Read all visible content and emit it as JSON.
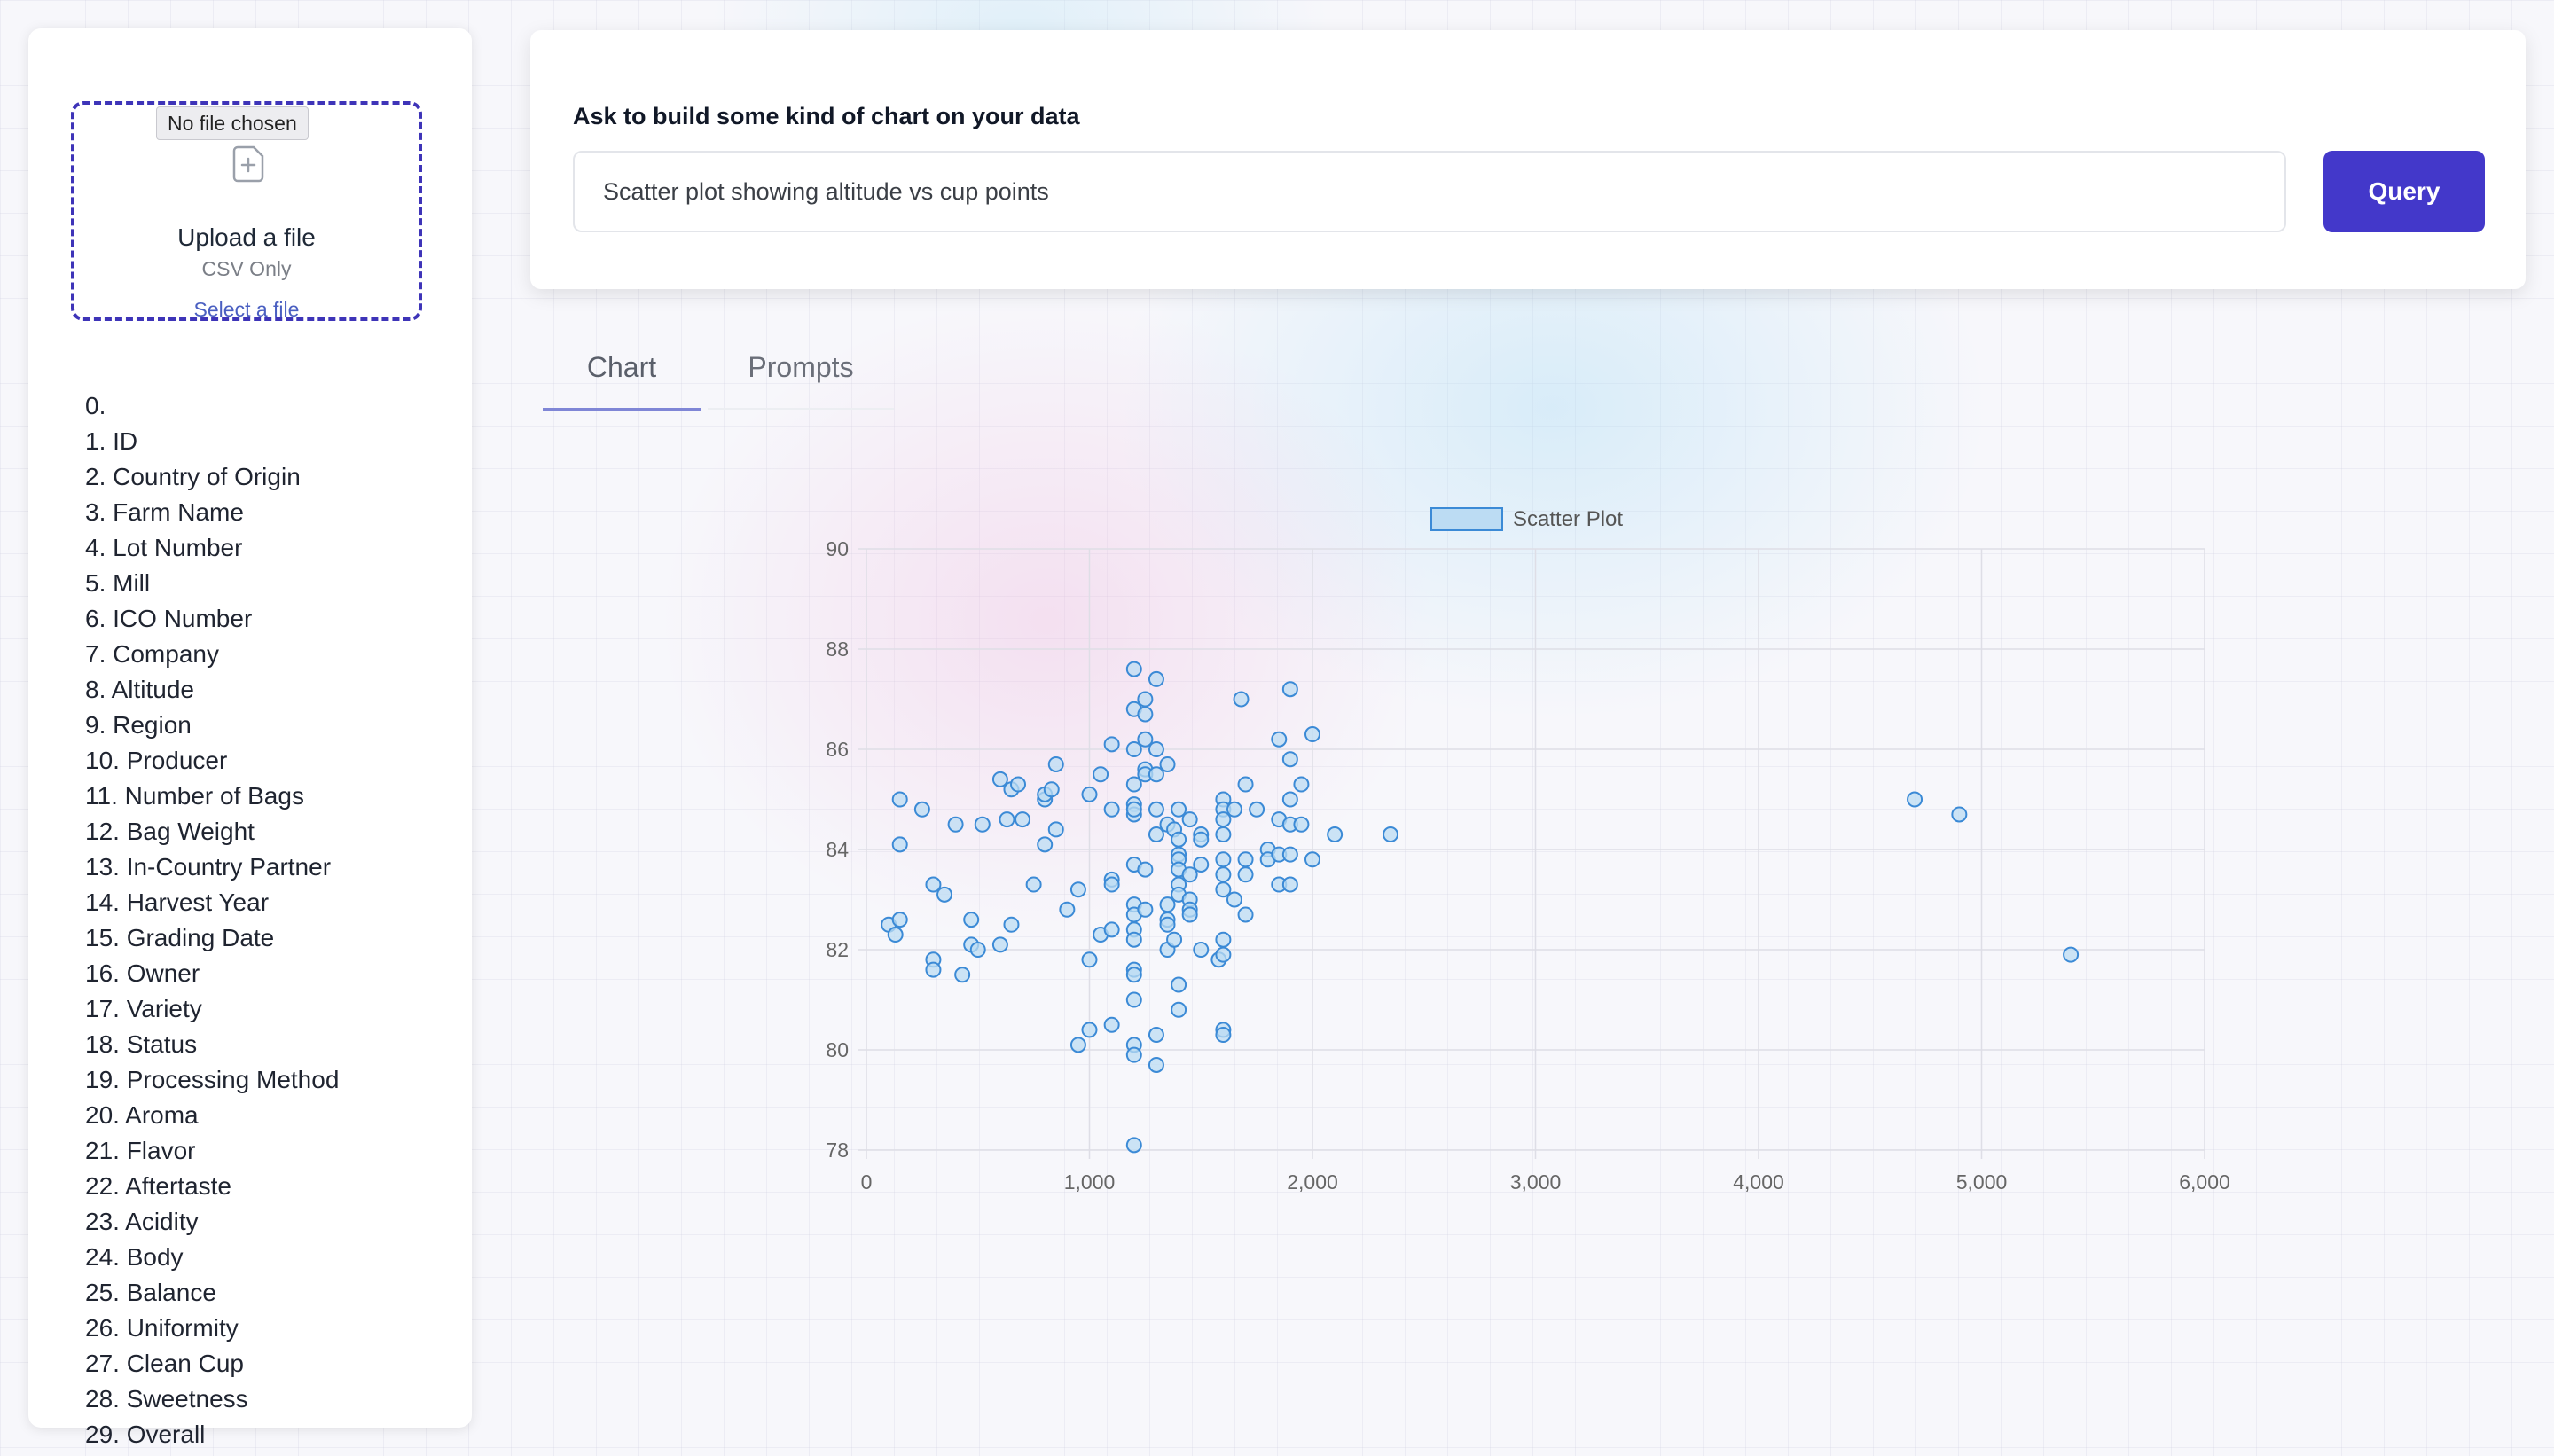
{
  "upload": {
    "tooltip": "No file chosen",
    "title": "Upload a file",
    "subtitle": "CSV Only",
    "link": "Select a file",
    "icon": "file-plus-icon"
  },
  "columns": [
    "0.",
    "1. ID",
    "2. Country of Origin",
    "3. Farm Name",
    "4. Lot Number",
    "5. Mill",
    "6. ICO Number",
    "7. Company",
    "8. Altitude",
    "9. Region",
    "10. Producer",
    "11. Number of Bags",
    "12. Bag Weight",
    "13. In-Country Partner",
    "14. Harvest Year",
    "15. Grading Date",
    "16. Owner",
    "17. Variety",
    "18. Status",
    "19. Processing Method",
    "20. Aroma",
    "21. Flavor",
    "22. Aftertaste",
    "23. Acidity",
    "24. Body",
    "25. Balance",
    "26. Uniformity",
    "27. Clean Cup",
    "28. Sweetness",
    "29. Overall"
  ],
  "query": {
    "label": "Ask to build some kind of chart on your data",
    "input_value": "Scatter plot showing altitude vs cup points",
    "button_label": "Query"
  },
  "tabs": {
    "chart": "Chart",
    "prompts": "Prompts",
    "active": "Chart"
  },
  "colors": {
    "accent": "#4338ca",
    "point_fill": "#bcdcf3",
    "point_stroke": "#3b8ad6"
  },
  "chart_data": {
    "type": "scatter",
    "legend": [
      "Scatter Plot"
    ],
    "legend_position": "top",
    "xlim": [
      0,
      6000
    ],
    "ylim": [
      78,
      90
    ],
    "x_ticks": [
      "0",
      "1,000",
      "2,000",
      "3,000",
      "4,000",
      "5,000",
      "6,000"
    ],
    "y_ticks": [
      "78",
      "80",
      "82",
      "84",
      "86",
      "88",
      "90"
    ],
    "grid": true,
    "series": [
      {
        "name": "Scatter Plot",
        "points": [
          [
            100,
            82.5
          ],
          [
            130,
            82.3
          ],
          [
            150,
            82.6
          ],
          [
            150,
            84.1
          ],
          [
            150,
            85.0
          ],
          [
            250,
            84.8
          ],
          [
            300,
            81.8
          ],
          [
            300,
            81.6
          ],
          [
            300,
            83.3
          ],
          [
            350,
            83.1
          ],
          [
            400,
            84.5
          ],
          [
            430,
            81.5
          ],
          [
            470,
            82.1
          ],
          [
            470,
            82.6
          ],
          [
            500,
            82.0
          ],
          [
            520,
            84.5
          ],
          [
            600,
            85.4
          ],
          [
            600,
            82.1
          ],
          [
            630,
            84.6
          ],
          [
            650,
            82.5
          ],
          [
            650,
            85.2
          ],
          [
            680,
            85.3
          ],
          [
            700,
            84.6
          ],
          [
            750,
            83.3
          ],
          [
            800,
            85.0
          ],
          [
            800,
            84.1
          ],
          [
            800,
            85.1
          ],
          [
            830,
            85.2
          ],
          [
            850,
            84.4
          ],
          [
            850,
            85.7
          ],
          [
            900,
            82.8
          ],
          [
            950,
            83.2
          ],
          [
            950,
            80.1
          ],
          [
            1000,
            80.4
          ],
          [
            1000,
            81.8
          ],
          [
            1000,
            85.1
          ],
          [
            1050,
            82.3
          ],
          [
            1050,
            85.5
          ],
          [
            1100,
            80.5
          ],
          [
            1100,
            86.1
          ],
          [
            1100,
            84.8
          ],
          [
            1100,
            83.4
          ],
          [
            1100,
            82.4
          ],
          [
            1100,
            83.3
          ],
          [
            1200,
            87.6
          ],
          [
            1200,
            86.8
          ],
          [
            1200,
            86.0
          ],
          [
            1200,
            85.3
          ],
          [
            1200,
            84.9
          ],
          [
            1200,
            84.7
          ],
          [
            1200,
            84.8
          ],
          [
            1200,
            83.7
          ],
          [
            1200,
            82.9
          ],
          [
            1200,
            82.7
          ],
          [
            1200,
            82.4
          ],
          [
            1200,
            82.2
          ],
          [
            1200,
            81.6
          ],
          [
            1200,
            81.5
          ],
          [
            1200,
            81.0
          ],
          [
            1200,
            80.1
          ],
          [
            1200,
            79.9
          ],
          [
            1200,
            78.1
          ],
          [
            1250,
            87.0
          ],
          [
            1250,
            86.7
          ],
          [
            1250,
            86.2
          ],
          [
            1250,
            85.6
          ],
          [
            1250,
            85.5
          ],
          [
            1250,
            83.6
          ],
          [
            1250,
            82.8
          ],
          [
            1300,
            87.4
          ],
          [
            1300,
            86.0
          ],
          [
            1300,
            85.5
          ],
          [
            1300,
            84.8
          ],
          [
            1300,
            84.3
          ],
          [
            1300,
            79.7
          ],
          [
            1300,
            80.3
          ],
          [
            1350,
            85.7
          ],
          [
            1350,
            84.5
          ],
          [
            1350,
            82.6
          ],
          [
            1350,
            82.5
          ],
          [
            1350,
            82.9
          ],
          [
            1350,
            82.0
          ],
          [
            1380,
            84.4
          ],
          [
            1380,
            82.2
          ],
          [
            1400,
            84.8
          ],
          [
            1400,
            84.2
          ],
          [
            1400,
            83.9
          ],
          [
            1400,
            83.8
          ],
          [
            1400,
            83.6
          ],
          [
            1400,
            83.3
          ],
          [
            1400,
            83.1
          ],
          [
            1400,
            81.3
          ],
          [
            1400,
            80.8
          ],
          [
            1450,
            84.6
          ],
          [
            1450,
            83.5
          ],
          [
            1450,
            83.0
          ],
          [
            1450,
            82.8
          ],
          [
            1450,
            82.7
          ],
          [
            1500,
            84.3
          ],
          [
            1500,
            84.2
          ],
          [
            1500,
            83.7
          ],
          [
            1500,
            82.0
          ],
          [
            1580,
            81.8
          ],
          [
            1600,
            85.0
          ],
          [
            1600,
            84.8
          ],
          [
            1600,
            84.6
          ],
          [
            1600,
            84.3
          ],
          [
            1600,
            83.8
          ],
          [
            1600,
            83.5
          ],
          [
            1600,
            83.2
          ],
          [
            1600,
            82.2
          ],
          [
            1600,
            81.9
          ],
          [
            1600,
            80.4
          ],
          [
            1600,
            80.3
          ],
          [
            1650,
            84.8
          ],
          [
            1650,
            83.0
          ],
          [
            1680,
            87.0
          ],
          [
            1700,
            85.3
          ],
          [
            1700,
            83.8
          ],
          [
            1700,
            83.5
          ],
          [
            1700,
            82.7
          ],
          [
            1750,
            84.8
          ],
          [
            1800,
            84.0
          ],
          [
            1800,
            83.8
          ],
          [
            1850,
            86.2
          ],
          [
            1850,
            84.6
          ],
          [
            1850,
            83.9
          ],
          [
            1850,
            83.3
          ],
          [
            1900,
            87.2
          ],
          [
            1900,
            85.8
          ],
          [
            1900,
            85.0
          ],
          [
            1900,
            84.5
          ],
          [
            1900,
            83.9
          ],
          [
            1900,
            83.3
          ],
          [
            1950,
            85.3
          ],
          [
            1950,
            84.5
          ],
          [
            2000,
            86.3
          ],
          [
            2000,
            83.8
          ],
          [
            2100,
            84.3
          ],
          [
            2350,
            84.3
          ],
          [
            4700,
            85.0
          ],
          [
            4900,
            84.7
          ],
          [
            5400,
            81.9
          ]
        ]
      }
    ]
  }
}
